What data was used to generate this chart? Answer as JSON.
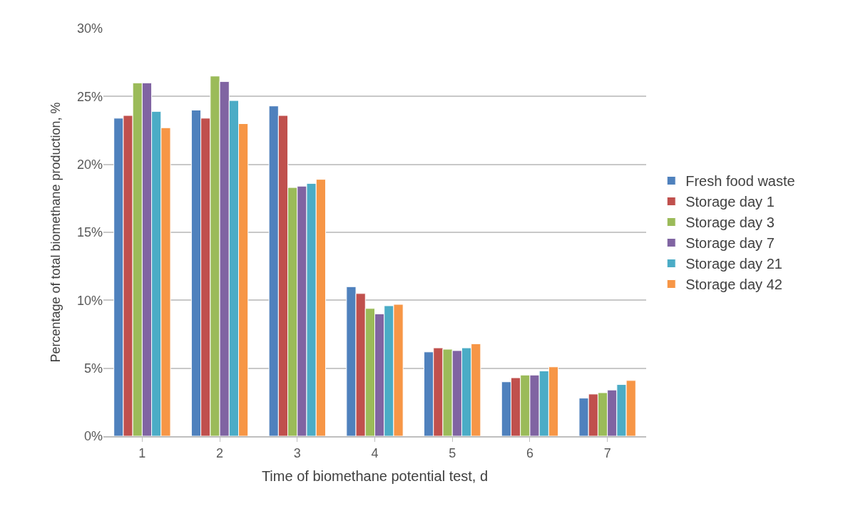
{
  "chart_data": {
    "type": "bar",
    "xlabel": "Time of biomethane potential test, d",
    "ylabel": "Percentage of total biomethane production, %",
    "categories": [
      "1",
      "2",
      "3",
      "4",
      "5",
      "6",
      "7"
    ],
    "series": [
      {
        "name": "Fresh food waste",
        "color": "#4f81bd",
        "values": [
          23.4,
          24.0,
          24.3,
          11.0,
          6.2,
          4.0,
          2.8
        ]
      },
      {
        "name": "Storage day 1",
        "color": "#c0504d",
        "values": [
          23.6,
          23.4,
          23.6,
          10.5,
          6.5,
          4.3,
          3.1
        ]
      },
      {
        "name": "Storage day 3",
        "color": "#9bbb59",
        "values": [
          26.0,
          26.5,
          18.3,
          9.4,
          6.4,
          4.5,
          3.2
        ]
      },
      {
        "name": "Storage day 7",
        "color": "#8064a2",
        "values": [
          26.0,
          26.1,
          18.4,
          9.0,
          6.3,
          4.5,
          3.4
        ]
      },
      {
        "name": "Storage day 21",
        "color": "#4bacc6",
        "values": [
          23.9,
          24.7,
          18.6,
          9.6,
          6.5,
          4.8,
          3.8
        ]
      },
      {
        "name": "Storage day 42",
        "color": "#f79646",
        "values": [
          22.7,
          23.0,
          18.9,
          9.7,
          6.8,
          5.1,
          4.1
        ]
      }
    ],
    "ylim": [
      0,
      30
    ],
    "yticks": [
      {
        "value": 0,
        "label": "0%"
      },
      {
        "value": 5,
        "label": "5%"
      },
      {
        "value": 10,
        "label": "10%"
      },
      {
        "value": 15,
        "label": "15%"
      },
      {
        "value": 20,
        "label": "20%"
      },
      {
        "value": 25,
        "label": "25%"
      },
      {
        "value": 30,
        "label": "30%"
      }
    ],
    "grid": "y",
    "legend": "right"
  }
}
